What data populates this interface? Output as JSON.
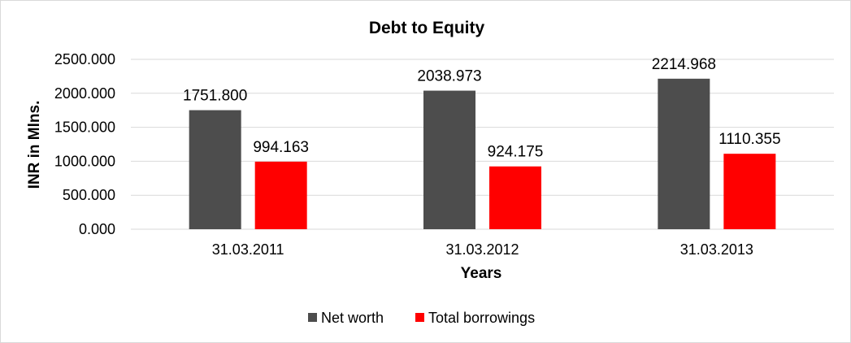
{
  "chart_data": {
    "type": "bar",
    "title": "Debt to Equity",
    "xlabel": "Years",
    "ylabel": "INR in Mlns.",
    "categories": [
      "31.03.2011",
      "31.03.2012",
      "31.03.2013"
    ],
    "series": [
      {
        "name": "Net worth",
        "color": "#4d4d4d",
        "values": [
          1751.8,
          2038.973,
          2214.968
        ],
        "labels": [
          "1751.800",
          "2038.973",
          "2214.968"
        ]
      },
      {
        "name": "Total borrowings",
        "color": "#ff0000",
        "values": [
          994.163,
          924.175,
          1110.355
        ],
        "labels": [
          "994.163",
          "924.175",
          "1110.355"
        ]
      }
    ],
    "ylim": [
      0,
      2500
    ],
    "yticks": [
      0,
      500,
      1000,
      1500,
      2000,
      2500
    ],
    "ytick_labels": [
      "0.000",
      "500.000",
      "1000.000",
      "1500.000",
      "2000.000",
      "2500.000"
    ],
    "grid": true,
    "gridline_color": "#d9d9d9",
    "legend": "bottom"
  }
}
